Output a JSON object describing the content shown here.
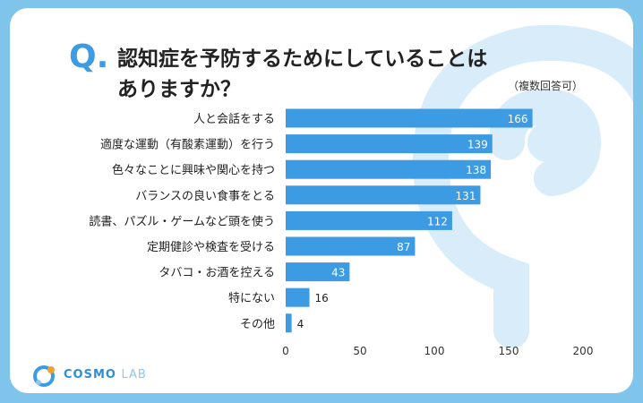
{
  "question_mark": "Q.",
  "title_line1": "認知症を予防するためにしていることは",
  "title_line2": "ありますか？",
  "note": "（複数回答可）",
  "logo": {
    "name": "COSMO",
    "suffix": "LAB"
  },
  "colors": {
    "bar": "#3d9be3",
    "accent": "#3d9be3",
    "frame": "#7fc4ea"
  },
  "chart_data": {
    "type": "bar",
    "orientation": "horizontal",
    "categories": [
      "人と会話をする",
      "適度な運動（有酸素運動）を行う",
      "色々なことに興味や関心を持つ",
      "バランスの良い食事をとる",
      "読書、パズル・ゲームなど頭を使う",
      "定期健診や検査を受ける",
      "タバコ・お酒を控える",
      "特にない",
      "その他"
    ],
    "values": [
      166,
      139,
      138,
      131,
      112,
      87,
      43,
      16,
      4
    ],
    "xlim": [
      0,
      200
    ],
    "xticks": [
      0,
      50,
      100,
      150,
      200
    ],
    "xlabel": "",
    "ylabel": "",
    "grid": false,
    "legend": "none"
  }
}
